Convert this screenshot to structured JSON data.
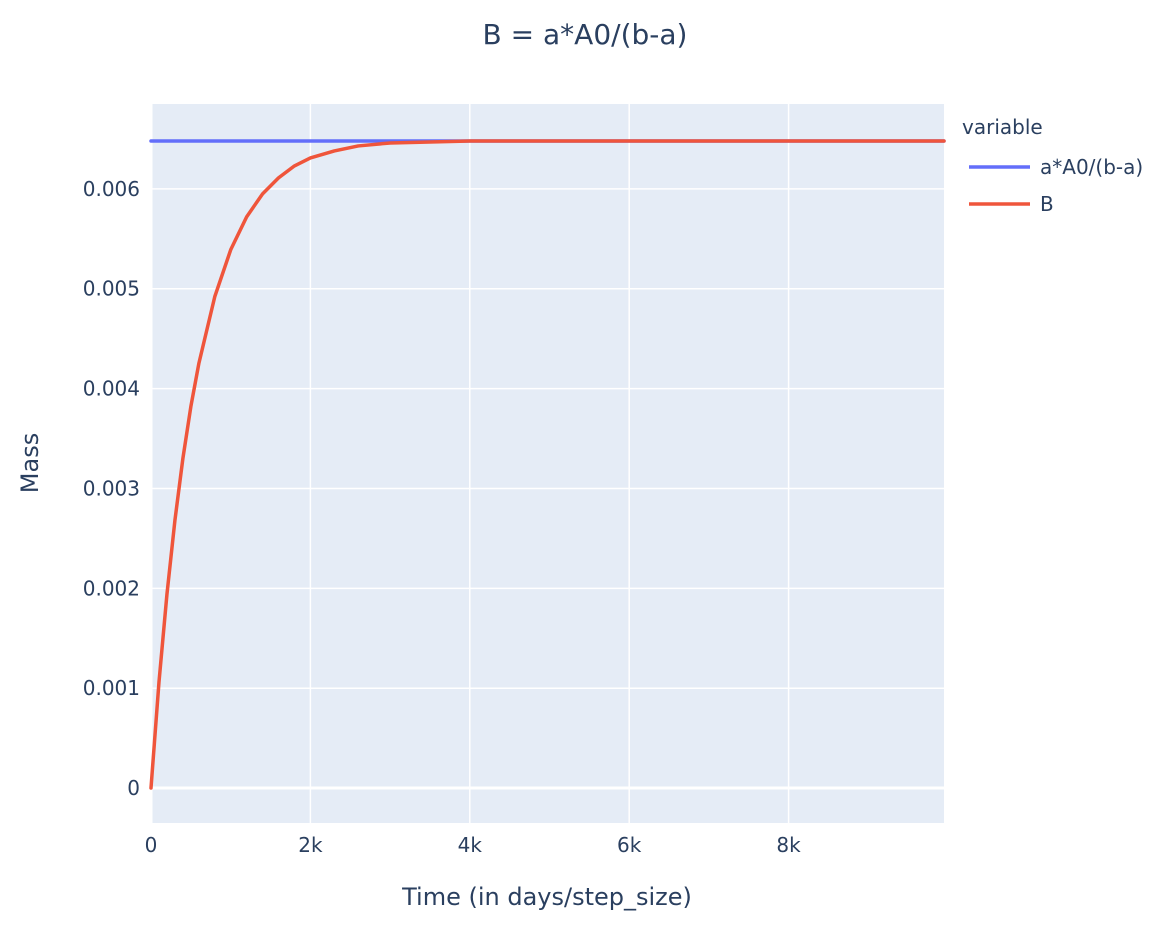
{
  "chart_data": {
    "type": "line",
    "title": "B = a*A0/(b-a)",
    "xlabel": "Time (in days/step_size)",
    "ylabel": "Mass",
    "xlim": [
      0,
      9950
    ],
    "ylim": [
      -0.00035,
      0.00685
    ],
    "x_ticks": [
      0,
      2000,
      4000,
      6000,
      8000
    ],
    "x_tick_labels": [
      "0",
      "2k",
      "4k",
      "6k",
      "8k"
    ],
    "y_ticks": [
      0,
      0.001,
      0.002,
      0.003,
      0.004,
      0.005,
      0.006
    ],
    "y_tick_labels": [
      "0",
      "0.001",
      "0.002",
      "0.003",
      "0.004",
      "0.005",
      "0.006"
    ],
    "grid": true,
    "legend": {
      "title": "variable",
      "placement": "right"
    },
    "series": [
      {
        "name": "a*A0/(b-a)",
        "color": "#636efa",
        "x": [
          0,
          9950
        ],
        "y": [
          0.00648,
          0.00648
        ]
      },
      {
        "name": "B",
        "color": "#ef553b",
        "x": [
          0,
          100,
          200,
          300,
          400,
          500,
          600,
          800,
          1000,
          1200,
          1400,
          1600,
          1800,
          2000,
          2300,
          2600,
          3000,
          3500,
          4000,
          5000,
          6000,
          7000,
          8000,
          9000,
          9950
        ],
        "y": [
          0,
          0.00106,
          0.00194,
          0.00268,
          0.0033,
          0.00382,
          0.00425,
          0.00492,
          0.00539,
          0.00572,
          0.00595,
          0.00611,
          0.00623,
          0.00631,
          0.00638,
          0.00643,
          0.00646,
          0.00647,
          0.00648,
          0.00648,
          0.00648,
          0.00648,
          0.00648,
          0.00648,
          0.00648
        ]
      }
    ]
  }
}
